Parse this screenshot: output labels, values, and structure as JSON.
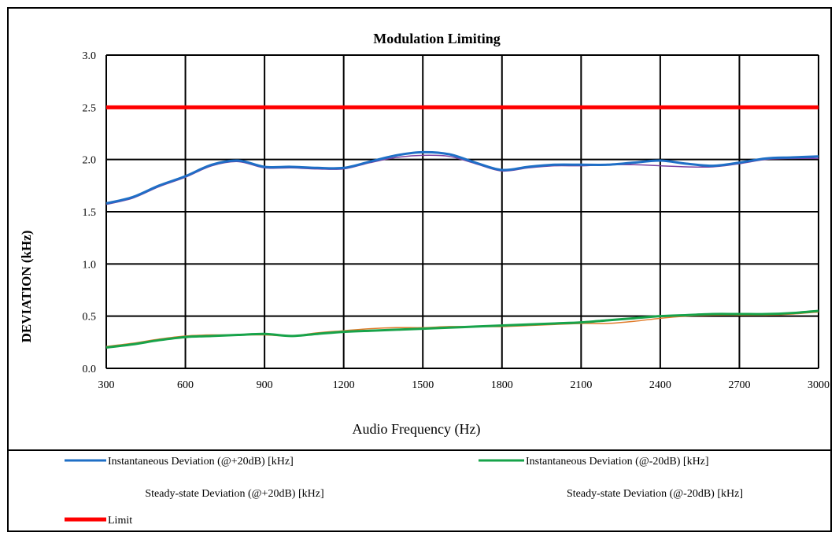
{
  "chart_data": {
    "type": "line",
    "title": "Modulation Limiting",
    "xlabel": "Audio Frequency (Hz)",
    "ylabel": "DEVIATION (kHz)",
    "xlim": [
      300,
      3000
    ],
    "ylim": [
      0.0,
      3.0
    ],
    "xticks": [
      "300",
      "600",
      "900",
      "1200",
      "1500",
      "1800",
      "2100",
      "2400",
      "2700",
      "3000"
    ],
    "yticks": [
      "0.0",
      "0.5",
      "1.0",
      "1.5",
      "2.0",
      "2.5",
      "3.0"
    ],
    "grid": true,
    "legend_position": "bottom",
    "series": [
      {
        "name": "Instantaneous Deviation (@+20dB) [kHz]",
        "color": "#1f6fc6",
        "x": [
          300,
          400,
          500,
          600,
          700,
          800,
          900,
          1000,
          1100,
          1200,
          1300,
          1400,
          1500,
          1600,
          1700,
          1800,
          1900,
          2000,
          2100,
          2200,
          2300,
          2400,
          2500,
          2600,
          2700,
          2800,
          2900,
          3000
        ],
        "y": [
          1.58,
          1.64,
          1.75,
          1.84,
          1.95,
          1.99,
          1.93,
          1.93,
          1.92,
          1.92,
          1.98,
          2.04,
          2.07,
          2.05,
          1.97,
          1.9,
          1.93,
          1.95,
          1.95,
          1.95,
          1.97,
          1.99,
          1.96,
          1.94,
          1.97,
          2.01,
          2.02,
          2.03
        ]
      },
      {
        "name": "Steady-state Deviation (@+20dB) [kHz]",
        "color": "#7b3fa0",
        "x": [
          300,
          400,
          500,
          600,
          700,
          800,
          900,
          1000,
          1100,
          1200,
          1300,
          1400,
          1500,
          1600,
          1700,
          1800,
          1900,
          2000,
          2100,
          2200,
          2300,
          2400,
          2500,
          2600,
          2700,
          2800,
          2900,
          3000
        ],
        "y": [
          1.57,
          1.63,
          1.74,
          1.83,
          1.94,
          1.98,
          1.92,
          1.92,
          1.91,
          1.91,
          1.97,
          2.02,
          2.04,
          2.03,
          1.96,
          1.89,
          1.92,
          1.94,
          1.94,
          1.95,
          1.95,
          1.94,
          1.93,
          1.93,
          1.96,
          2.0,
          2.01,
          2.01
        ]
      },
      {
        "name": "Instantaneous Deviation (@-20dB) [kHz]",
        "color": "#17a34a",
        "x": [
          300,
          400,
          500,
          600,
          700,
          800,
          900,
          1000,
          1100,
          1200,
          1300,
          1400,
          1500,
          1600,
          1700,
          1800,
          1900,
          2000,
          2100,
          2200,
          2300,
          2400,
          2500,
          2600,
          2700,
          2800,
          2900,
          3000
        ],
        "y": [
          0.2,
          0.23,
          0.27,
          0.3,
          0.31,
          0.32,
          0.33,
          0.31,
          0.33,
          0.35,
          0.36,
          0.37,
          0.38,
          0.39,
          0.4,
          0.41,
          0.42,
          0.43,
          0.44,
          0.46,
          0.48,
          0.5,
          0.51,
          0.52,
          0.52,
          0.52,
          0.53,
          0.55
        ]
      },
      {
        "name": "Steady-state Deviation (@-20dB) [kHz]",
        "color": "#e07b2a",
        "x": [
          300,
          400,
          500,
          600,
          700,
          800,
          900,
          1000,
          1100,
          1200,
          1300,
          1400,
          1500,
          1600,
          1700,
          1800,
          1900,
          2000,
          2100,
          2200,
          2300,
          2400,
          2500,
          2600,
          2700,
          2800,
          2900,
          3000
        ],
        "y": [
          0.21,
          0.24,
          0.28,
          0.31,
          0.32,
          0.32,
          0.32,
          0.31,
          0.34,
          0.36,
          0.38,
          0.39,
          0.39,
          0.4,
          0.4,
          0.4,
          0.41,
          0.42,
          0.43,
          0.43,
          0.45,
          0.48,
          0.5,
          0.51,
          0.51,
          0.51,
          0.52,
          0.54
        ]
      },
      {
        "name": "Limit",
        "color": "#ff0000",
        "x": [
          300,
          3000
        ],
        "y": [
          2.5,
          2.5
        ]
      }
    ],
    "legend": [
      {
        "label": "Instantaneous Deviation (@+20dB) [kHz]",
        "color": "#1f6fc6",
        "show_line": true
      },
      {
        "label": "Instantaneous Deviation (@-20dB) [kHz]",
        "color": "#17a34a",
        "show_line": true
      },
      {
        "label": "Steady-state Deviation (@+20dB) [kHz]",
        "color": "#7b3fa0",
        "show_line": false
      },
      {
        "label": "Steady-state Deviation (@-20dB) [kHz]",
        "color": "#e07b2a",
        "show_line": false
      },
      {
        "label": "Limit",
        "color": "#ff0000",
        "show_line": true
      }
    ]
  }
}
